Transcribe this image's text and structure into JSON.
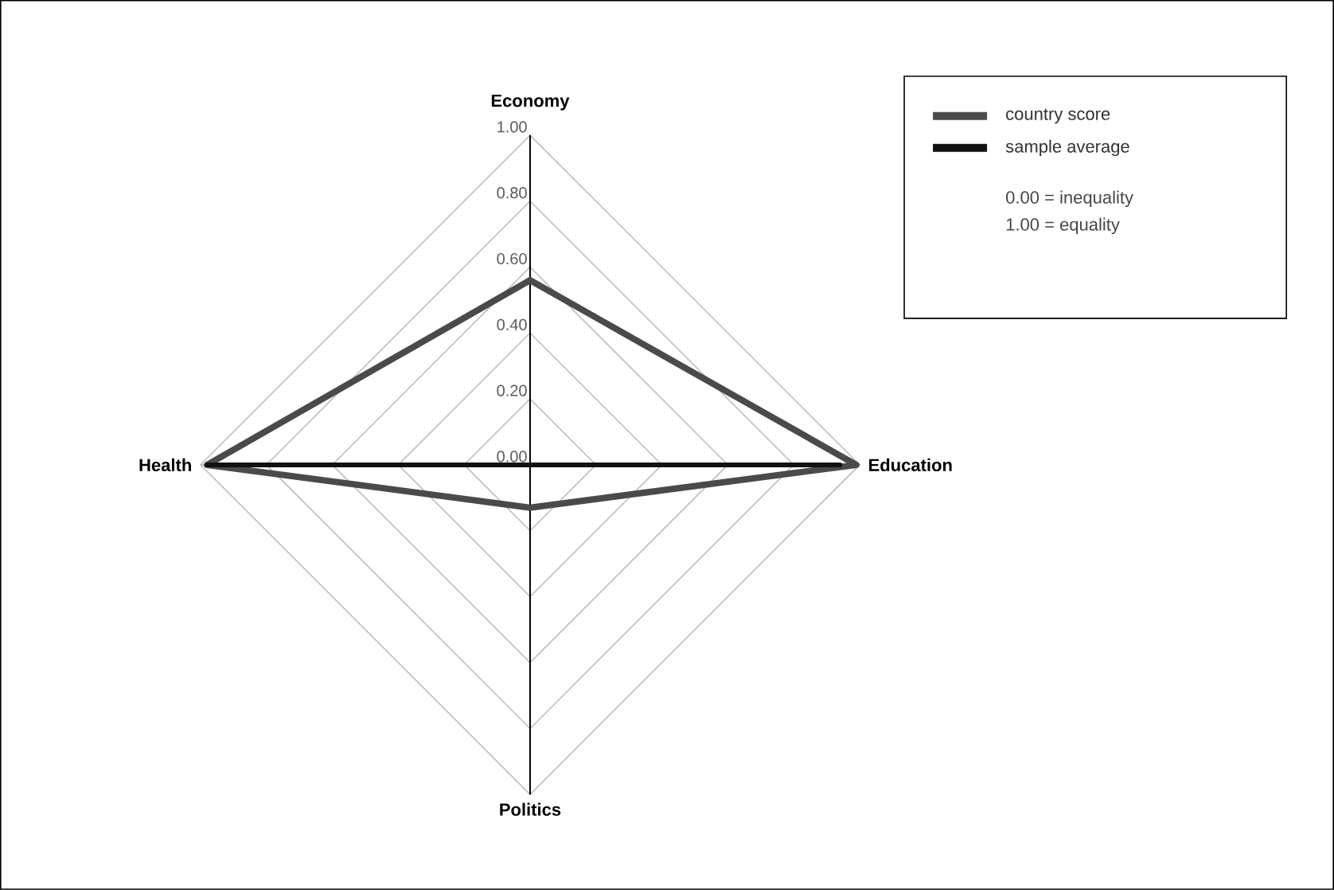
{
  "chart_data": {
    "type": "radar",
    "categories": [
      "Economy",
      "Education",
      "Politics",
      "Health"
    ],
    "series": [
      {
        "name": "country score",
        "color": "#4a4a4a",
        "values": [
          0.56,
          0.99,
          0.13,
          0.98
        ]
      },
      {
        "name": "sample average",
        "color": "#111111",
        "values": [
          0.0,
          0.94,
          0.0,
          0.98
        ]
      }
    ],
    "ylim": [
      0,
      1
    ],
    "yticks": [
      {
        "value": 0,
        "label": "0.00"
      },
      {
        "value": 0.2,
        "label": "0.20"
      },
      {
        "value": 0.4,
        "label": "0.40"
      },
      {
        "value": 0.6,
        "label": "0.60"
      },
      {
        "value": 0.8,
        "label": "0.80"
      },
      {
        "value": 1,
        "label": "1.00"
      }
    ],
    "grid": true,
    "legend": "top right",
    "annotations": [
      "0.00 = inequality",
      "1.00 = equality"
    ]
  }
}
